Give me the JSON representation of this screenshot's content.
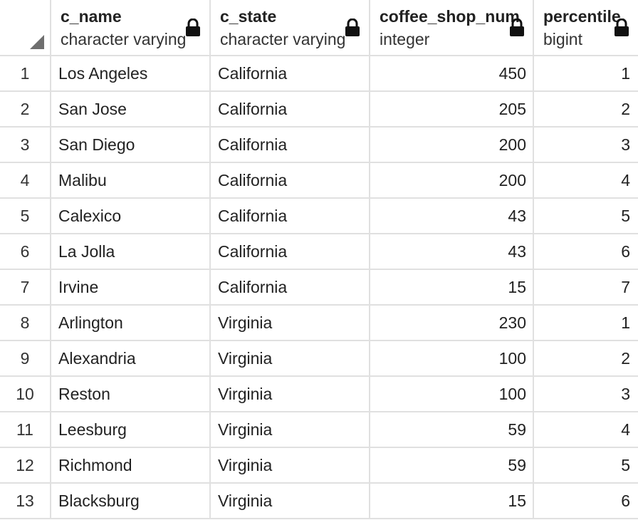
{
  "columns": [
    {
      "name": "c_name",
      "type": "character varying"
    },
    {
      "name": "c_state",
      "type": "character varying"
    },
    {
      "name": "coffee_shop_num",
      "type": "integer"
    },
    {
      "name": "percentile",
      "type": "bigint"
    }
  ],
  "rows": [
    {
      "idx": "1",
      "c_name": "Los Angeles",
      "c_state": "California",
      "coffee_shop_num": "450",
      "percentile": "1"
    },
    {
      "idx": "2",
      "c_name": "San Jose",
      "c_state": "California",
      "coffee_shop_num": "205",
      "percentile": "2"
    },
    {
      "idx": "3",
      "c_name": "San Diego",
      "c_state": "California",
      "coffee_shop_num": "200",
      "percentile": "3"
    },
    {
      "idx": "4",
      "c_name": "Malibu",
      "c_state": "California",
      "coffee_shop_num": "200",
      "percentile": "4"
    },
    {
      "idx": "5",
      "c_name": "Calexico",
      "c_state": "California",
      "coffee_shop_num": "43",
      "percentile": "5"
    },
    {
      "idx": "6",
      "c_name": "La Jolla",
      "c_state": "California",
      "coffee_shop_num": "43",
      "percentile": "6"
    },
    {
      "idx": "7",
      "c_name": "Irvine",
      "c_state": "California",
      "coffee_shop_num": "15",
      "percentile": "7"
    },
    {
      "idx": "8",
      "c_name": "Arlington",
      "c_state": "Virginia",
      "coffee_shop_num": "230",
      "percentile": "1"
    },
    {
      "idx": "9",
      "c_name": "Alexandria",
      "c_state": "Virginia",
      "coffee_shop_num": "100",
      "percentile": "2"
    },
    {
      "idx": "10",
      "c_name": "Reston",
      "c_state": "Virginia",
      "coffee_shop_num": "100",
      "percentile": "3"
    },
    {
      "idx": "11",
      "c_name": "Leesburg",
      "c_state": "Virginia",
      "coffee_shop_num": "59",
      "percentile": "4"
    },
    {
      "idx": "12",
      "c_name": "Richmond",
      "c_state": "Virginia",
      "coffee_shop_num": "59",
      "percentile": "5"
    },
    {
      "idx": "13",
      "c_name": "Blacksburg",
      "c_state": "Virginia",
      "coffee_shop_num": "15",
      "percentile": "6"
    }
  ],
  "icons": {
    "column_lock": "lock-icon",
    "select_all": "select-all-corner-icon"
  }
}
